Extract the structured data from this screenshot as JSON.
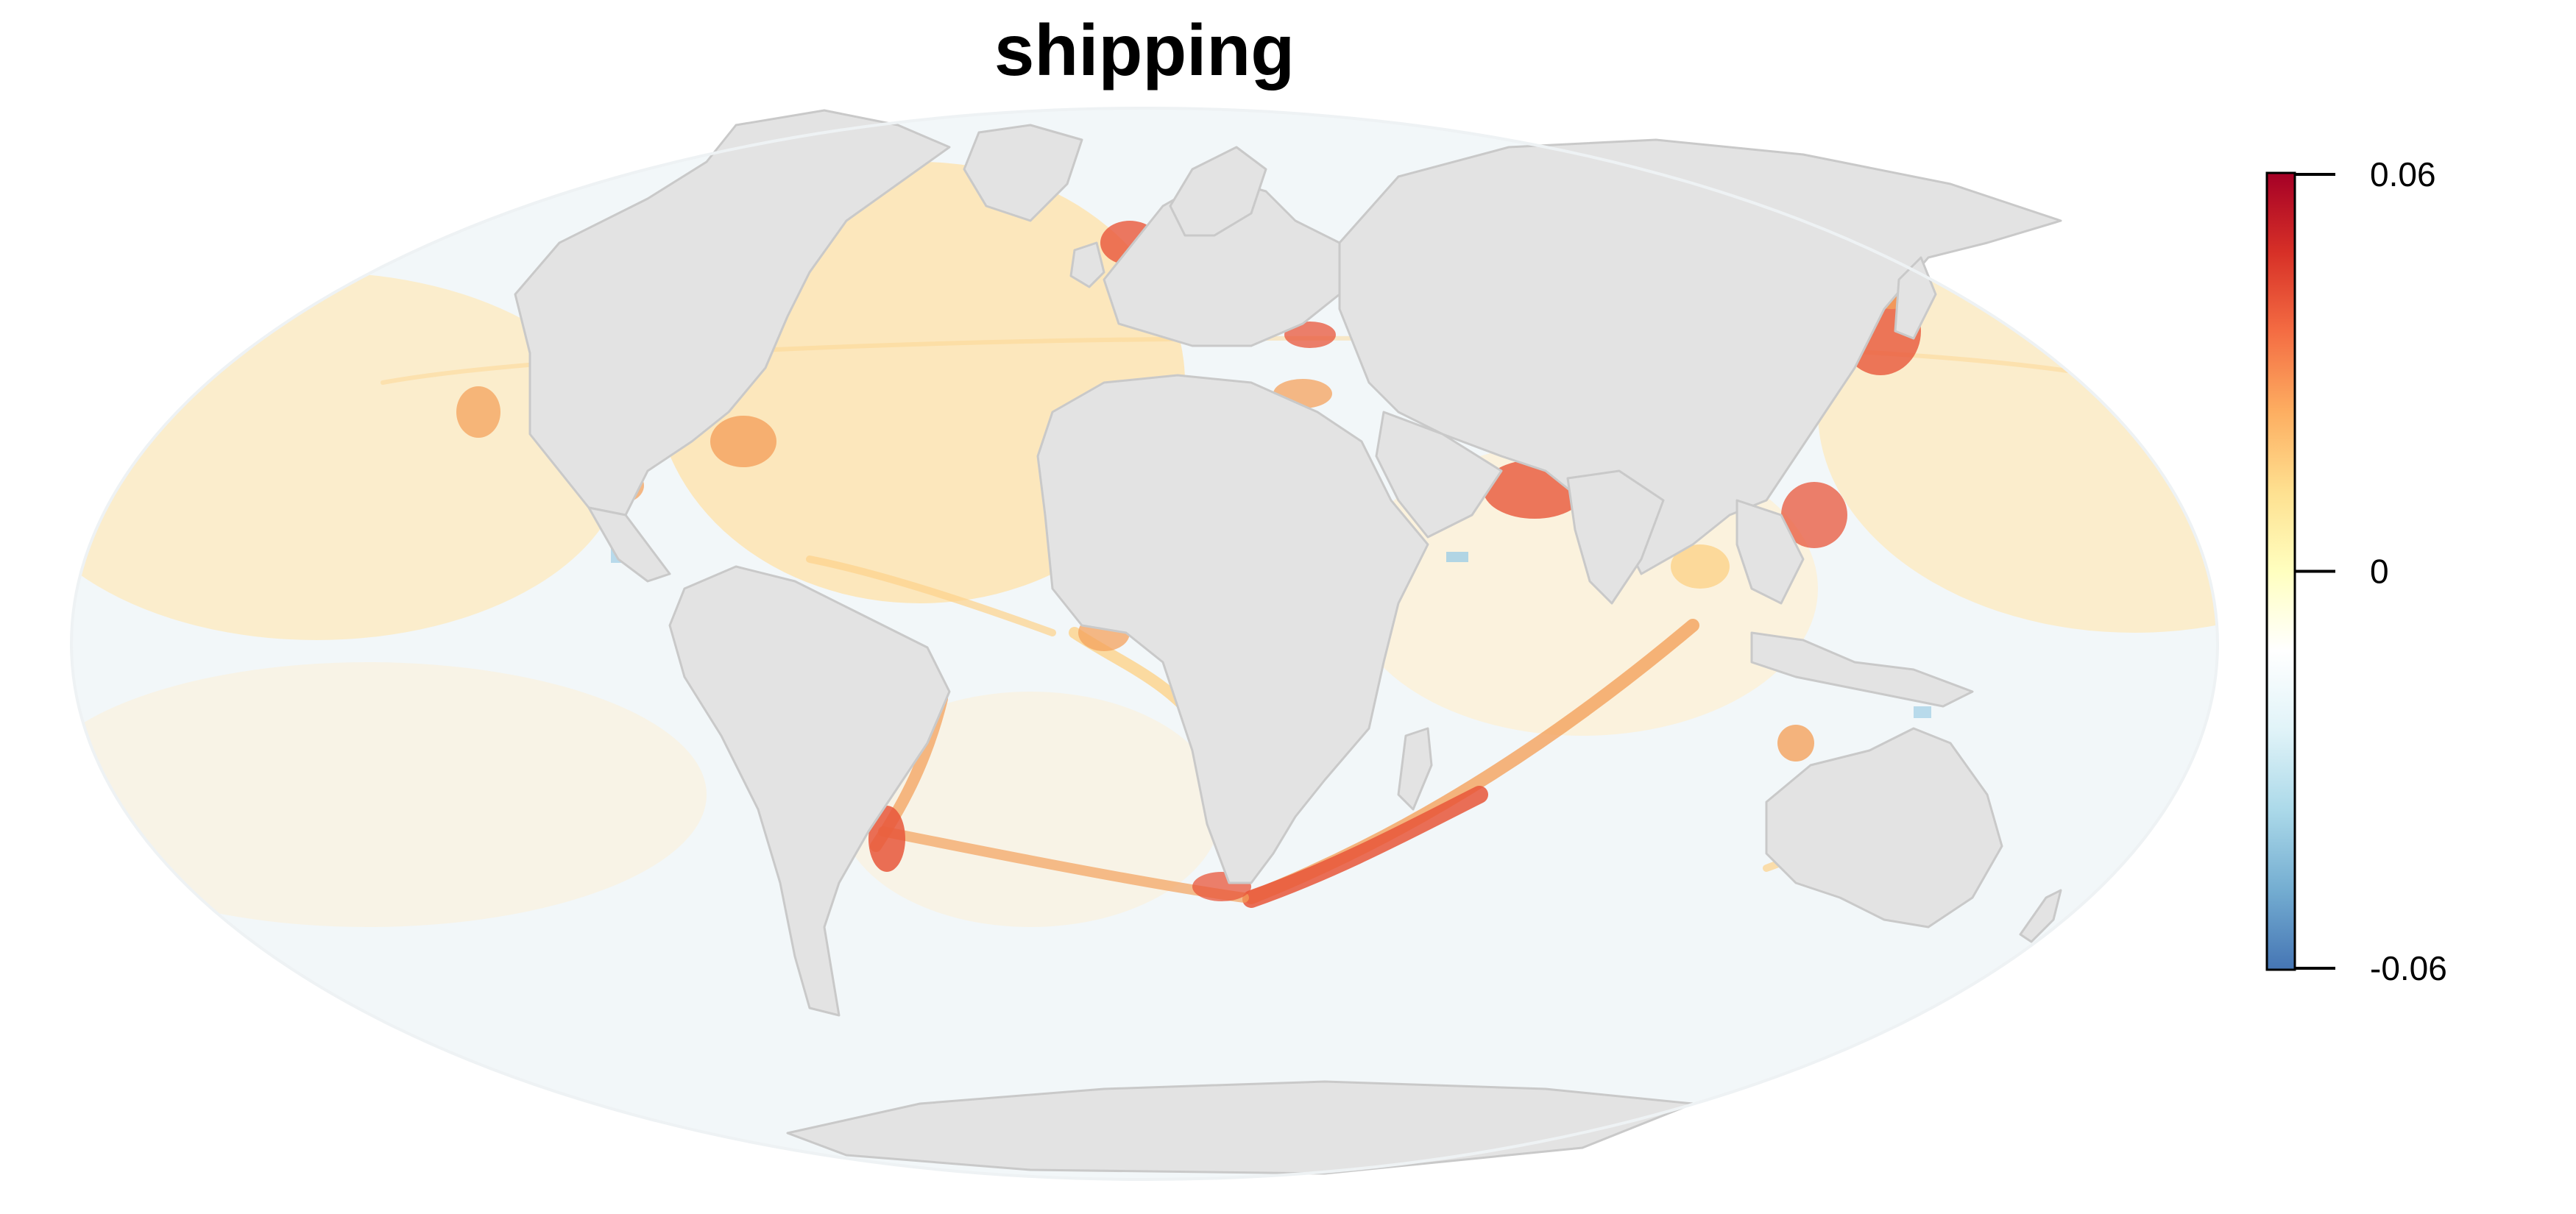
{
  "title": "shipping",
  "colors": {
    "ocean_base": "#f2f7f9",
    "land": "#e3e3e3",
    "land_border": "#c9c9c9",
    "warm_low": "#fdebc4",
    "warm_mid": "#fdd28a",
    "warm_high": "#f4a15c",
    "hot": "#e8563a",
    "cool": "#9fcde6"
  },
  "legend": {
    "type": "colorbar",
    "stops": [
      "#a50026",
      "#d73027",
      "#f46d43",
      "#fdae61",
      "#fee090",
      "#ffffbf",
      "#ffffff",
      "#e0f3f8",
      "#abd9e9",
      "#74add1",
      "#4575b4"
    ],
    "ticks": [
      "0.06",
      "0",
      "-0.06"
    ]
  }
}
